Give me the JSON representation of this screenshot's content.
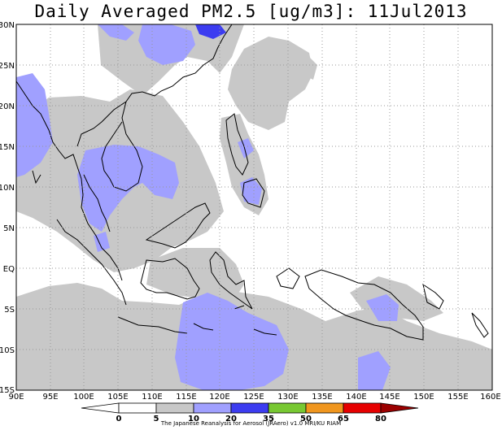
{
  "title": "Daily Averaged PM2.5 [ug/m3]: 11Jul2013",
  "map": {
    "lat_labels": [
      "30N",
      "25N",
      "20N",
      "15N",
      "10N",
      "5N",
      "EQ",
      "5S",
      "10S",
      "15S"
    ],
    "lon_labels": [
      "90E",
      "95E",
      "100E",
      "105E",
      "110E",
      "115E",
      "120E",
      "125E",
      "130E",
      "135E",
      "140E",
      "145E",
      "150E",
      "155E",
      "160E"
    ],
    "lat_range": [
      -15,
      30
    ],
    "lon_range": [
      90,
      160
    ],
    "grid": "dotted"
  },
  "colorbar": {
    "levels": [
      "0",
      "5",
      "10",
      "20",
      "35",
      "50",
      "65",
      "80"
    ],
    "colors": [
      "#ffffff",
      "#ffffff",
      "#c8c8c8",
      "#a0a0ff",
      "#3c3cf0",
      "#78c832",
      "#f0961e",
      "#e60000",
      "#9b0000"
    ]
  },
  "credit": "The Japanese Reanalysis for Aerosol (JRAero) v1.0 MRI/KU RIAM",
  "colors": {
    "gray_10_20": "#c8c8c8",
    "blue_20_35": "#a0a0ff",
    "blue_35_50": "#3c3cf0"
  }
}
